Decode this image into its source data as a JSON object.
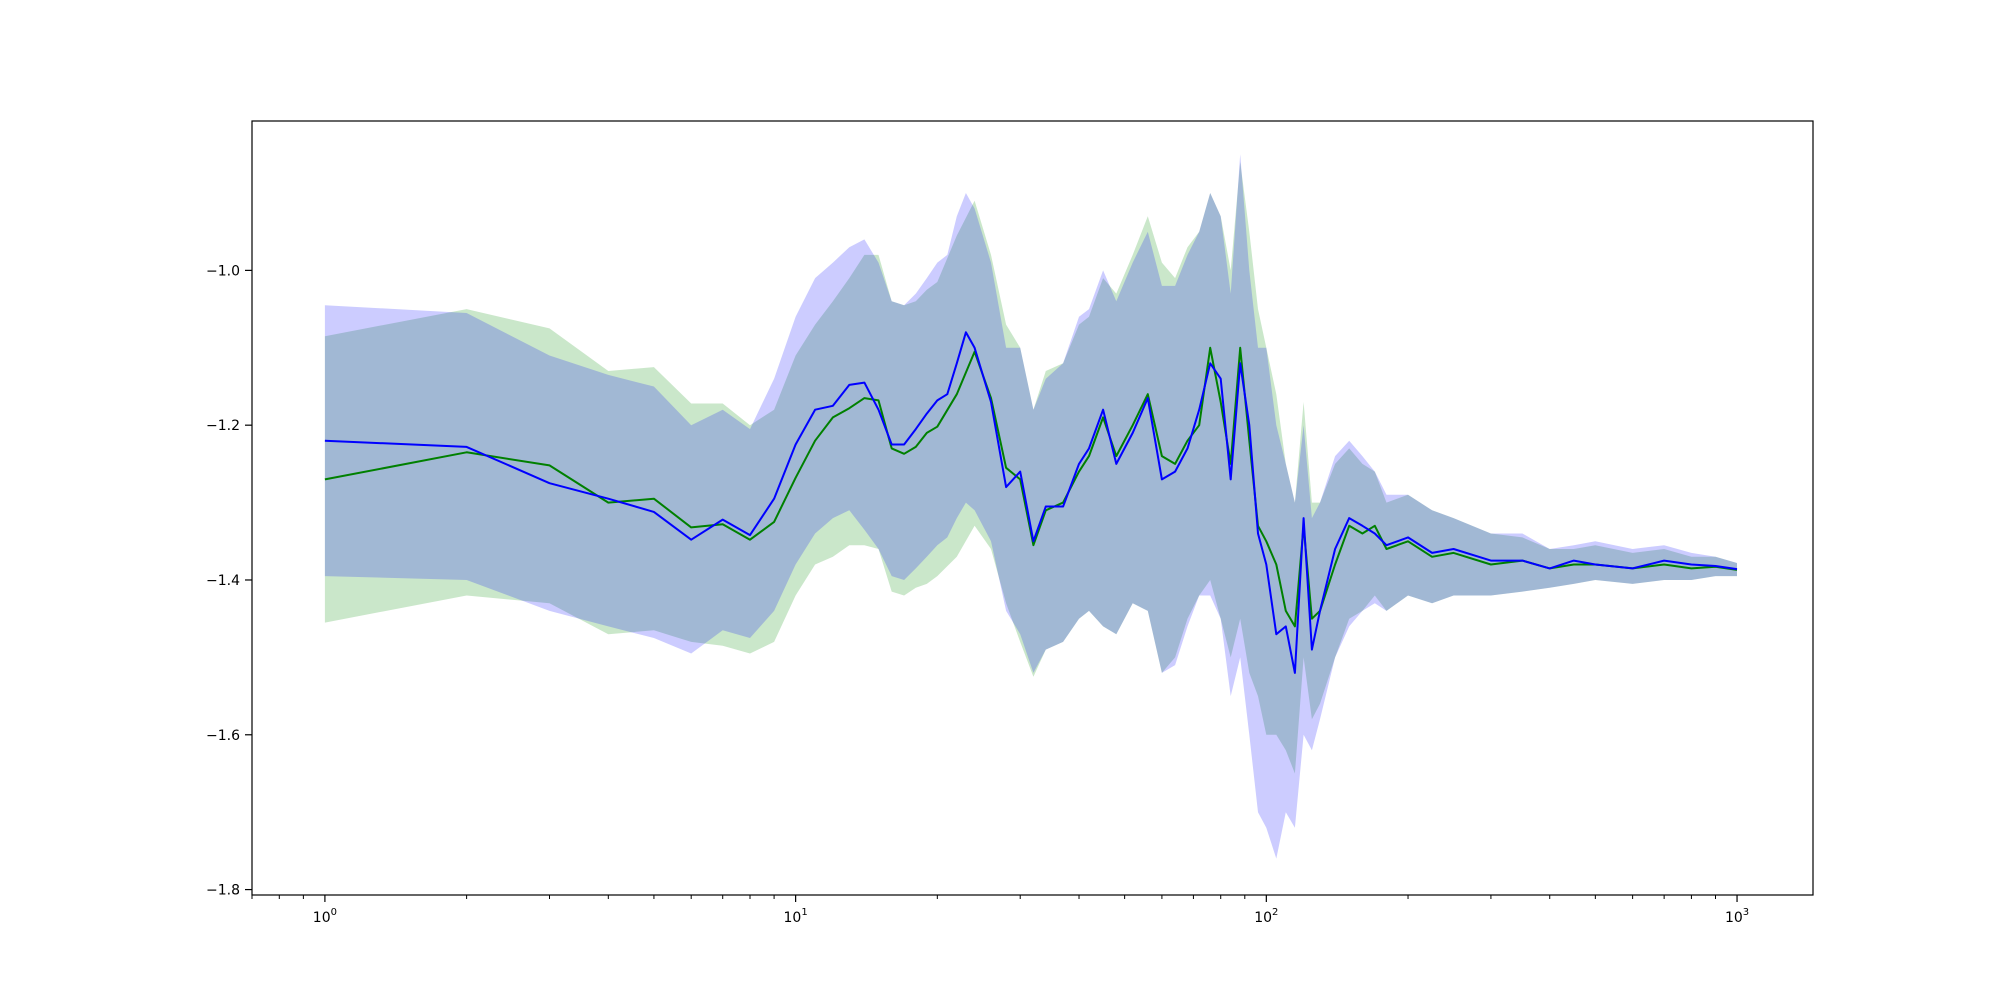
{
  "chart_data": {
    "type": "line",
    "title": "",
    "xlabel": "",
    "ylabel": "",
    "x_scale": "log",
    "xlim": [
      0.7,
      1450
    ],
    "ylim": [
      -1.807,
      -0.807
    ],
    "grid": false,
    "legend": "none",
    "x_ticks": [
      {
        "value": 1,
        "base": "10",
        "exp": "0"
      },
      {
        "value": 10,
        "base": "10",
        "exp": "1"
      },
      {
        "value": 100,
        "base": "10",
        "exp": "2"
      },
      {
        "value": 1000,
        "base": "10",
        "exp": "3"
      }
    ],
    "y_ticks": [
      {
        "value": -1.0,
        "label": "−1.0"
      },
      {
        "value": -1.2,
        "label": "−1.2"
      },
      {
        "value": -1.4,
        "label": "−1.4"
      },
      {
        "value": -1.6,
        "label": "−1.6"
      },
      {
        "value": -1.8,
        "label": "−1.8"
      }
    ],
    "series": [
      {
        "color": "#008000",
        "band_color": "#2ca02c",
        "band_opacity": 0.25,
        "points": [
          [
            1,
            -1.27,
            -1.455,
            -1.085
          ],
          [
            2,
            -1.235,
            -1.42,
            -1.05
          ],
          [
            3,
            -1.252,
            -1.43,
            -1.075
          ],
          [
            4,
            -1.3,
            -1.47,
            -1.13
          ],
          [
            5,
            -1.295,
            -1.465,
            -1.125
          ],
          [
            6,
            -1.332,
            -1.48,
            -1.172
          ],
          [
            7,
            -1.328,
            -1.485,
            -1.172
          ],
          [
            8,
            -1.348,
            -1.495,
            -1.2
          ],
          [
            9,
            -1.325,
            -1.48,
            -1.18
          ],
          [
            10,
            -1.268,
            -1.42,
            -1.11
          ],
          [
            11,
            -1.22,
            -1.38,
            -1.07
          ],
          [
            12,
            -1.19,
            -1.37,
            -1.04
          ],
          [
            13,
            -1.178,
            -1.355,
            -1.01
          ],
          [
            14,
            -1.165,
            -1.355,
            -0.98
          ],
          [
            15,
            -1.168,
            -1.36,
            -0.98
          ],
          [
            16,
            -1.23,
            -1.415,
            -1.04
          ],
          [
            17,
            -1.237,
            -1.42,
            -1.045
          ],
          [
            18,
            -1.228,
            -1.41,
            -1.04
          ],
          [
            19,
            -1.21,
            -1.405,
            -1.025
          ],
          [
            20,
            -1.202,
            -1.395,
            -1.015
          ],
          [
            22,
            -1.16,
            -1.37,
            -0.955
          ],
          [
            24,
            -1.105,
            -1.33,
            -0.91
          ],
          [
            26,
            -1.165,
            -1.36,
            -0.98
          ],
          [
            28,
            -1.255,
            -1.43,
            -1.07
          ],
          [
            30,
            -1.27,
            -1.48,
            -1.1
          ],
          [
            32,
            -1.355,
            -1.525,
            -1.18
          ],
          [
            34,
            -1.31,
            -1.49,
            -1.13
          ],
          [
            37,
            -1.3,
            -1.48,
            -1.12
          ],
          [
            40,
            -1.26,
            -1.45,
            -1.07
          ],
          [
            42,
            -1.24,
            -1.44,
            -1.06
          ],
          [
            45,
            -1.19,
            -1.46,
            -1.01
          ],
          [
            48,
            -1.24,
            -1.47,
            -1.03
          ],
          [
            52,
            -1.2,
            -1.43,
            -0.98
          ],
          [
            56,
            -1.16,
            -1.44,
            -0.93
          ],
          [
            60,
            -1.24,
            -1.52,
            -0.99
          ],
          [
            64,
            -1.25,
            -1.5,
            -1.01
          ],
          [
            68,
            -1.22,
            -1.45,
            -0.97
          ],
          [
            72,
            -1.2,
            -1.42,
            -0.95
          ],
          [
            76,
            -1.1,
            -1.4,
            -0.9
          ],
          [
            80,
            -1.17,
            -1.45,
            -0.93
          ],
          [
            84,
            -1.25,
            -1.5,
            -1.0
          ],
          [
            88,
            -1.1,
            -1.45,
            -0.86
          ],
          [
            92,
            -1.22,
            -1.52,
            -0.95
          ],
          [
            96,
            -1.33,
            -1.55,
            -1.05
          ],
          [
            100,
            -1.35,
            -1.6,
            -1.1
          ],
          [
            105,
            -1.38,
            -1.6,
            -1.16
          ],
          [
            110,
            -1.44,
            -1.62,
            -1.25
          ],
          [
            115,
            -1.46,
            -1.65,
            -1.3
          ],
          [
            120,
            -1.33,
            -1.5,
            -1.17
          ],
          [
            125,
            -1.45,
            -1.58,
            -1.3
          ],
          [
            130,
            -1.44,
            -1.56,
            -1.3
          ],
          [
            140,
            -1.38,
            -1.5,
            -1.25
          ],
          [
            150,
            -1.33,
            -1.45,
            -1.23
          ],
          [
            160,
            -1.34,
            -1.44,
            -1.25
          ],
          [
            170,
            -1.33,
            -1.42,
            -1.26
          ],
          [
            180,
            -1.36,
            -1.44,
            -1.3
          ],
          [
            200,
            -1.35,
            -1.42,
            -1.29
          ],
          [
            225,
            -1.37,
            -1.43,
            -1.31
          ],
          [
            250,
            -1.365,
            -1.42,
            -1.32
          ],
          [
            300,
            -1.38,
            -1.42,
            -1.34
          ],
          [
            350,
            -1.375,
            -1.415,
            -1.345
          ],
          [
            400,
            -1.385,
            -1.41,
            -1.36
          ],
          [
            450,
            -1.38,
            -1.405,
            -1.36
          ],
          [
            500,
            -1.38,
            -1.4,
            -1.355
          ],
          [
            600,
            -1.385,
            -1.405,
            -1.365
          ],
          [
            700,
            -1.38,
            -1.4,
            -1.36
          ],
          [
            800,
            -1.385,
            -1.4,
            -1.37
          ],
          [
            900,
            -1.383,
            -1.395,
            -1.37
          ],
          [
            1000,
            -1.387,
            -1.395,
            -1.378
          ]
        ]
      },
      {
        "color": "#0000ff",
        "band_color": "#0000ff",
        "band_opacity": 0.2,
        "points": [
          [
            1,
            -1.22,
            -1.395,
            -1.045
          ],
          [
            2,
            -1.228,
            -1.4,
            -1.055
          ],
          [
            3,
            -1.275,
            -1.44,
            -1.11
          ],
          [
            4,
            -1.295,
            -1.46,
            -1.135
          ],
          [
            5,
            -1.312,
            -1.475,
            -1.15
          ],
          [
            6,
            -1.348,
            -1.495,
            -1.2
          ],
          [
            7,
            -1.322,
            -1.465,
            -1.18
          ],
          [
            8,
            -1.342,
            -1.475,
            -1.205
          ],
          [
            9,
            -1.295,
            -1.44,
            -1.14
          ],
          [
            10,
            -1.225,
            -1.38,
            -1.06
          ],
          [
            11,
            -1.18,
            -1.34,
            -1.01
          ],
          [
            12,
            -1.175,
            -1.32,
            -0.99
          ],
          [
            13,
            -1.148,
            -1.31,
            -0.97
          ],
          [
            14,
            -1.145,
            -1.335,
            -0.96
          ],
          [
            15,
            -1.18,
            -1.36,
            -0.99
          ],
          [
            16,
            -1.225,
            -1.395,
            -1.04
          ],
          [
            17,
            -1.225,
            -1.4,
            -1.045
          ],
          [
            18,
            -1.205,
            -1.385,
            -1.03
          ],
          [
            19,
            -1.185,
            -1.37,
            -1.01
          ],
          [
            20,
            -1.168,
            -1.355,
            -0.99
          ],
          [
            21,
            -1.16,
            -1.345,
            -0.98
          ],
          [
            22,
            -1.12,
            -1.32,
            -0.93
          ],
          [
            23,
            -1.08,
            -1.3,
            -0.9
          ],
          [
            24,
            -1.1,
            -1.31,
            -0.92
          ],
          [
            26,
            -1.17,
            -1.35,
            -0.99
          ],
          [
            28,
            -1.28,
            -1.44,
            -1.1
          ],
          [
            30,
            -1.26,
            -1.47,
            -1.1
          ],
          [
            32,
            -1.35,
            -1.52,
            -1.18
          ],
          [
            34,
            -1.305,
            -1.49,
            -1.14
          ],
          [
            37,
            -1.305,
            -1.48,
            -1.12
          ],
          [
            40,
            -1.25,
            -1.45,
            -1.06
          ],
          [
            42,
            -1.23,
            -1.44,
            -1.05
          ],
          [
            45,
            -1.18,
            -1.46,
            -1.0
          ],
          [
            48,
            -1.25,
            -1.47,
            -1.04
          ],
          [
            52,
            -1.21,
            -1.43,
            -0.99
          ],
          [
            56,
            -1.165,
            -1.44,
            -0.95
          ],
          [
            60,
            -1.27,
            -1.52,
            -1.02
          ],
          [
            64,
            -1.26,
            -1.51,
            -1.02
          ],
          [
            68,
            -1.23,
            -1.46,
            -0.98
          ],
          [
            72,
            -1.18,
            -1.42,
            -0.95
          ],
          [
            76,
            -1.12,
            -1.42,
            -0.9
          ],
          [
            80,
            -1.14,
            -1.45,
            -0.93
          ],
          [
            84,
            -1.27,
            -1.55,
            -1.03
          ],
          [
            88,
            -1.12,
            -1.5,
            -0.85
          ],
          [
            92,
            -1.2,
            -1.6,
            -1.0
          ],
          [
            96,
            -1.34,
            -1.7,
            -1.1
          ],
          [
            100,
            -1.38,
            -1.72,
            -1.1
          ],
          [
            105,
            -1.47,
            -1.76,
            -1.2
          ],
          [
            110,
            -1.46,
            -1.7,
            -1.25
          ],
          [
            115,
            -1.52,
            -1.72,
            -1.3
          ],
          [
            120,
            -1.32,
            -1.6,
            -1.2
          ],
          [
            125,
            -1.49,
            -1.62,
            -1.32
          ],
          [
            130,
            -1.44,
            -1.58,
            -1.3
          ],
          [
            140,
            -1.36,
            -1.5,
            -1.24
          ],
          [
            150,
            -1.32,
            -1.46,
            -1.22
          ],
          [
            160,
            -1.33,
            -1.44,
            -1.24
          ],
          [
            170,
            -1.34,
            -1.43,
            -1.26
          ],
          [
            180,
            -1.355,
            -1.44,
            -1.29
          ],
          [
            200,
            -1.345,
            -1.42,
            -1.29
          ],
          [
            225,
            -1.365,
            -1.43,
            -1.31
          ],
          [
            250,
            -1.36,
            -1.42,
            -1.32
          ],
          [
            300,
            -1.375,
            -1.42,
            -1.34
          ],
          [
            350,
            -1.375,
            -1.415,
            -1.34
          ],
          [
            400,
            -1.385,
            -1.41,
            -1.36
          ],
          [
            450,
            -1.375,
            -1.405,
            -1.355
          ],
          [
            500,
            -1.38,
            -1.4,
            -1.35
          ],
          [
            600,
            -1.385,
            -1.405,
            -1.36
          ],
          [
            700,
            -1.375,
            -1.4,
            -1.355
          ],
          [
            800,
            -1.38,
            -1.4,
            -1.365
          ],
          [
            900,
            -1.382,
            -1.395,
            -1.37
          ],
          [
            1000,
            -1.386,
            -1.395,
            -1.378
          ]
        ]
      }
    ]
  }
}
